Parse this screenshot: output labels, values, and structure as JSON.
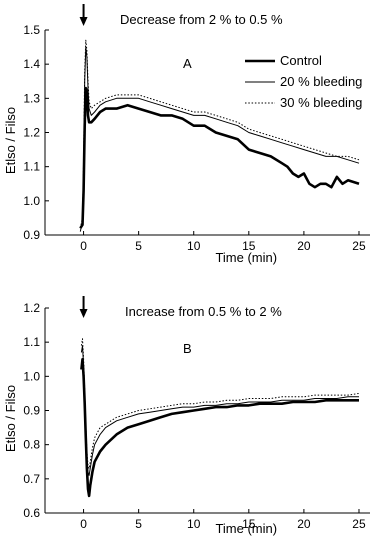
{
  "chart_data": [
    {
      "type": "line",
      "panel_label": "A",
      "annotation": "Decrease from 2 % to 0.5 %",
      "xlabel": "Time (min)",
      "ylabel": "Etlso / Filso",
      "xlim": [
        -3.5,
        26
      ],
      "ylim": [
        0.9,
        1.5
      ],
      "xticks": [
        0,
        5,
        10,
        15,
        20,
        25
      ],
      "yticks": [
        0.9,
        1.0,
        1.1,
        1.2,
        1.3,
        1.4,
        1.5
      ],
      "ytick_labels": [
        "0.9",
        "1.0",
        "1.1",
        "1.2",
        "1.3",
        "1.4",
        "1.5"
      ],
      "grid": false,
      "legend_position": "top-right",
      "arrow_at_x": 0,
      "series": [
        {
          "name": "Control",
          "style": "thick-solid",
          "x": [
            -0.3,
            -0.1,
            0.0,
            0.1,
            0.2,
            0.3,
            0.4,
            0.5,
            0.7,
            1.0,
            1.5,
            2,
            3,
            4,
            5,
            6,
            7,
            8,
            9,
            10,
            11,
            12,
            13,
            14,
            15,
            16,
            17,
            18,
            18.5,
            19,
            19.5,
            20,
            20.5,
            21,
            21.5,
            22,
            22.5,
            23,
            23.5,
            24,
            25
          ],
          "y": [
            0.92,
            0.93,
            1.03,
            1.22,
            1.33,
            1.32,
            1.25,
            1.23,
            1.23,
            1.24,
            1.26,
            1.27,
            1.27,
            1.28,
            1.27,
            1.26,
            1.25,
            1.25,
            1.24,
            1.22,
            1.22,
            1.2,
            1.19,
            1.18,
            1.15,
            1.14,
            1.13,
            1.11,
            1.1,
            1.08,
            1.07,
            1.08,
            1.05,
            1.04,
            1.05,
            1.05,
            1.04,
            1.07,
            1.05,
            1.06,
            1.05
          ]
        },
        {
          "name": "20 % bleeding",
          "style": "thin-solid",
          "x": [
            -0.3,
            -0.1,
            0.0,
            0.1,
            0.2,
            0.3,
            0.4,
            0.5,
            0.7,
            1.0,
            1.5,
            2,
            3,
            4,
            5,
            6,
            7,
            8,
            9,
            10,
            11,
            12,
            13,
            14,
            15,
            16,
            17,
            18,
            19,
            20,
            21,
            22,
            23,
            24,
            25
          ],
          "y": [
            0.91,
            0.94,
            1.1,
            1.35,
            1.45,
            1.42,
            1.33,
            1.27,
            1.25,
            1.26,
            1.28,
            1.29,
            1.3,
            1.3,
            1.3,
            1.29,
            1.28,
            1.27,
            1.26,
            1.25,
            1.25,
            1.24,
            1.23,
            1.22,
            1.2,
            1.19,
            1.18,
            1.17,
            1.16,
            1.15,
            1.14,
            1.13,
            1.13,
            1.12,
            1.11
          ]
        },
        {
          "name": "30 % bleeding",
          "style": "dotted",
          "x": [
            -0.3,
            -0.1,
            0.0,
            0.1,
            0.2,
            0.3,
            0.4,
            0.5,
            0.7,
            1.0,
            1.5,
            2,
            3,
            4,
            5,
            6,
            7,
            8,
            9,
            10,
            11,
            12,
            13,
            14,
            15,
            16,
            17,
            18,
            19,
            20,
            21,
            22,
            23,
            24,
            25
          ],
          "y": [
            0.92,
            0.95,
            1.12,
            1.38,
            1.47,
            1.44,
            1.35,
            1.29,
            1.27,
            1.28,
            1.29,
            1.3,
            1.31,
            1.31,
            1.31,
            1.3,
            1.29,
            1.28,
            1.27,
            1.26,
            1.26,
            1.25,
            1.24,
            1.23,
            1.21,
            1.2,
            1.19,
            1.18,
            1.17,
            1.16,
            1.15,
            1.14,
            1.13,
            1.13,
            1.12
          ]
        }
      ]
    },
    {
      "type": "line",
      "panel_label": "B",
      "annotation": "Increase from 0.5 % to 2 %",
      "xlabel": "Time (min)",
      "ylabel": "Etlso / Filso",
      "xlim": [
        -3.5,
        26
      ],
      "ylim": [
        0.6,
        1.2
      ],
      "xticks": [
        0,
        5,
        10,
        15,
        20,
        25
      ],
      "yticks": [
        0.6,
        0.7,
        0.8,
        0.9,
        1.0,
        1.1,
        1.2
      ],
      "ytick_labels": [
        "0.6",
        "0.7",
        "0.8",
        "0.9",
        "1.0",
        "1.1",
        "1.2"
      ],
      "grid": false,
      "arrow_at_x": 0,
      "series": [
        {
          "name": "Control",
          "style": "thick-solid",
          "x": [
            -0.2,
            -0.1,
            0.0,
            0.1,
            0.2,
            0.3,
            0.4,
            0.5,
            0.6,
            0.8,
            1.0,
            1.5,
            2,
            3,
            4,
            5,
            6,
            7,
            8,
            9,
            10,
            11,
            12,
            13,
            14,
            15,
            16,
            17,
            18,
            19,
            20,
            21,
            22,
            23,
            24,
            25
          ],
          "y": [
            1.02,
            1.05,
            1.0,
            0.92,
            0.82,
            0.73,
            0.67,
            0.65,
            0.68,
            0.72,
            0.75,
            0.78,
            0.8,
            0.83,
            0.85,
            0.86,
            0.87,
            0.88,
            0.89,
            0.895,
            0.9,
            0.905,
            0.91,
            0.91,
            0.915,
            0.915,
            0.92,
            0.92,
            0.92,
            0.925,
            0.925,
            0.925,
            0.93,
            0.93,
            0.93,
            0.93
          ]
        },
        {
          "name": "20 % bleeding",
          "style": "thin-solid",
          "x": [
            -0.2,
            -0.1,
            0.0,
            0.1,
            0.2,
            0.3,
            0.4,
            0.5,
            0.6,
            0.8,
            1.0,
            1.5,
            2,
            3,
            4,
            5,
            6,
            7,
            8,
            9,
            10,
            11,
            12,
            13,
            14,
            15,
            16,
            17,
            18,
            19,
            20,
            21,
            22,
            23,
            24,
            25
          ],
          "y": [
            1.07,
            1.09,
            1.03,
            0.94,
            0.84,
            0.76,
            0.72,
            0.71,
            0.73,
            0.77,
            0.8,
            0.83,
            0.85,
            0.87,
            0.88,
            0.89,
            0.895,
            0.9,
            0.905,
            0.91,
            0.91,
            0.915,
            0.915,
            0.92,
            0.92,
            0.925,
            0.925,
            0.925,
            0.93,
            0.93,
            0.93,
            0.935,
            0.935,
            0.935,
            0.94,
            0.94
          ]
        },
        {
          "name": "30 % bleeding",
          "style": "dotted",
          "x": [
            -0.2,
            -0.1,
            0.0,
            0.1,
            0.2,
            0.3,
            0.4,
            0.5,
            0.6,
            0.8,
            1.0,
            1.5,
            2,
            3,
            4,
            5,
            6,
            7,
            8,
            9,
            10,
            11,
            12,
            13,
            14,
            15,
            16,
            17,
            18,
            19,
            20,
            21,
            22,
            23,
            24,
            25
          ],
          "y": [
            1.09,
            1.11,
            1.05,
            0.96,
            0.86,
            0.78,
            0.74,
            0.73,
            0.75,
            0.79,
            0.82,
            0.85,
            0.86,
            0.88,
            0.89,
            0.9,
            0.905,
            0.91,
            0.915,
            0.92,
            0.92,
            0.925,
            0.925,
            0.93,
            0.93,
            0.935,
            0.935,
            0.935,
            0.94,
            0.94,
            0.94,
            0.945,
            0.945,
            0.945,
            0.945,
            0.95
          ]
        }
      ]
    }
  ]
}
